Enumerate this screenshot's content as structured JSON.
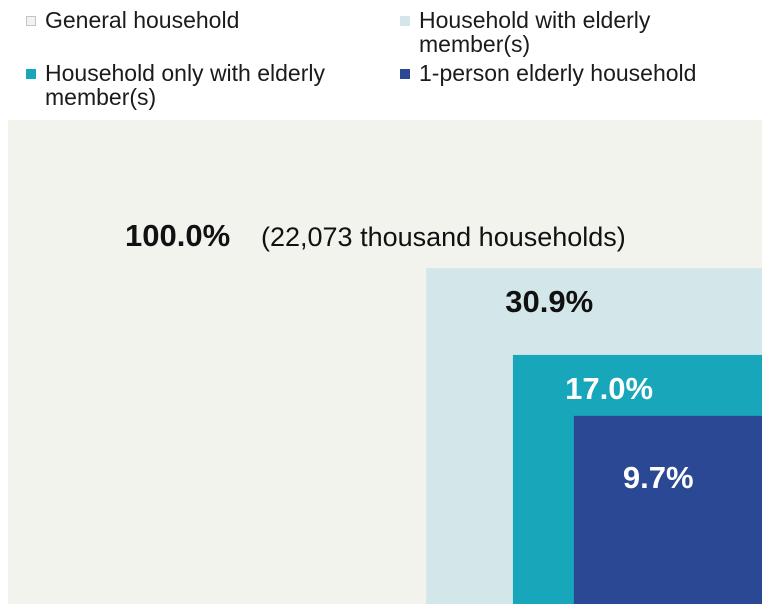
{
  "chart_data": {
    "type": "nested-area",
    "total_households": "22,073 thousand households",
    "series": [
      {
        "name": "General household",
        "value": 100.0,
        "label": "100.0%",
        "note": "(22,073 thousand households)",
        "color": "#f3f3ee",
        "text_color": "#111111"
      },
      {
        "name": "Household with elderly member(s)",
        "value": 30.9,
        "label": "30.9%",
        "color": "#d3e7ea",
        "text_color": "#111111"
      },
      {
        "name": "Household only with elderly member(s)",
        "value": 17.0,
        "label": "17.0%",
        "color": "#18a6bb",
        "text_color": "#ffffff"
      },
      {
        "name": "1-person elderly household",
        "value": 9.7,
        "label": "9.7%",
        "color": "#2b4894",
        "text_color": "#ffffff"
      }
    ]
  }
}
